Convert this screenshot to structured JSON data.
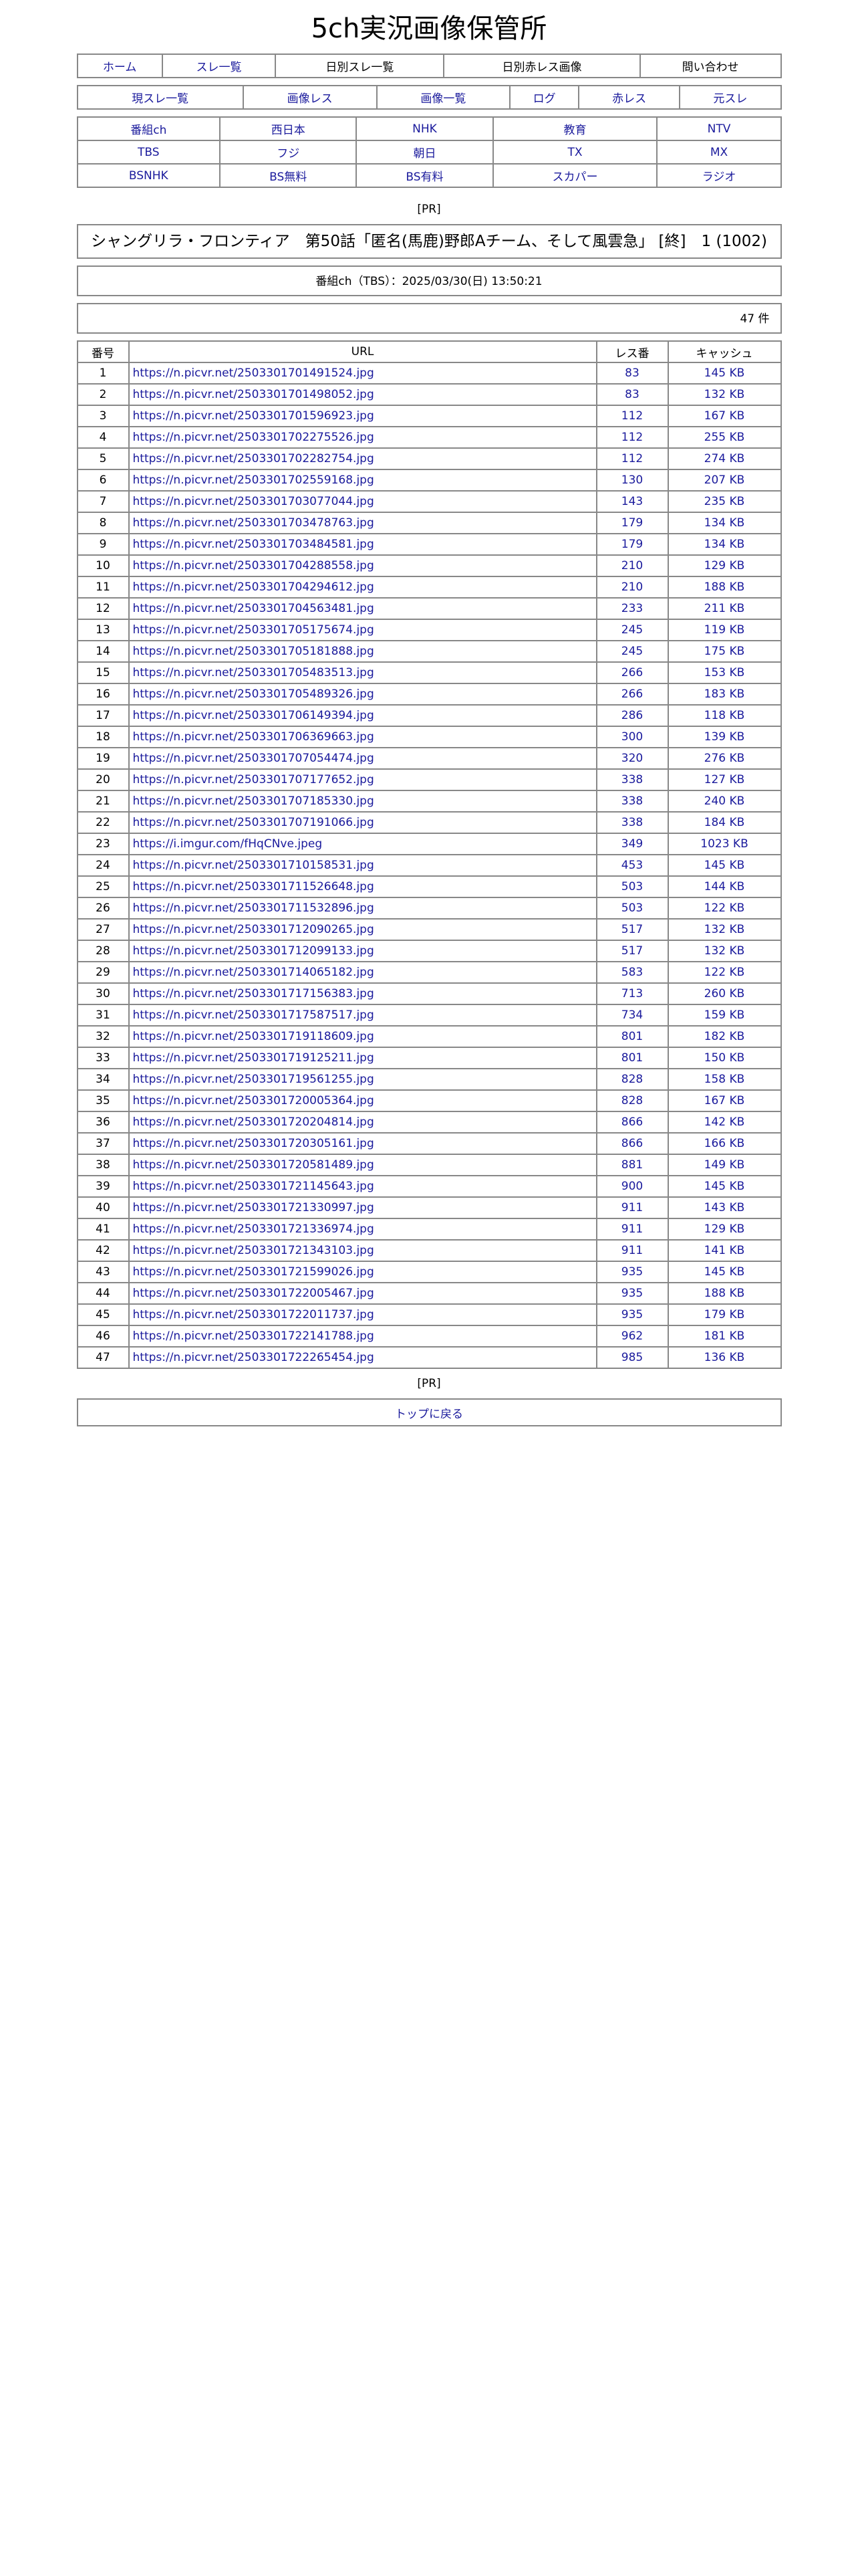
{
  "site_title": "5ch実況画像保管所",
  "nav1": [
    {
      "label": "ホーム",
      "link": true
    },
    {
      "label": "スレ一覧",
      "link": true
    },
    {
      "label": "日別スレ一覧",
      "link": false
    },
    {
      "label": "日別赤レス画像",
      "link": false
    },
    {
      "label": "問い合わせ",
      "link": false
    }
  ],
  "nav2": [
    "現スレ一覧",
    "画像レス",
    "画像一覧",
    "ログ",
    "赤レス",
    "元スレ"
  ],
  "channels": [
    [
      "番組ch",
      "西日本",
      "NHK",
      "教育",
      "NTV"
    ],
    [
      "TBS",
      "フジ",
      "朝日",
      "TX",
      "MX"
    ],
    [
      "BSNHK",
      "BS無料",
      "BS有料",
      "スカパー",
      "ラジオ"
    ]
  ],
  "pr_label": "[PR]",
  "thread_title": "シャングリラ・フロンティア　第50話「匿名(馬鹿)野郎Aチーム、そして風雲急」 [終]　1 (1002)",
  "thread_info": "番組ch（TBS）：2025/03/30(日) 13:50:21",
  "count": "47 件",
  "table": {
    "headers": [
      "番号",
      "URL",
      "レス番",
      "キャッシュ"
    ],
    "rows": [
      [
        "1",
        "https://n.picvr.net/2503301701491524.jpg",
        "83",
        "145 KB"
      ],
      [
        "2",
        "https://n.picvr.net/2503301701498052.jpg",
        "83",
        "132 KB"
      ],
      [
        "3",
        "https://n.picvr.net/2503301701596923.jpg",
        "112",
        "167 KB"
      ],
      [
        "4",
        "https://n.picvr.net/2503301702275526.jpg",
        "112",
        "255 KB"
      ],
      [
        "5",
        "https://n.picvr.net/2503301702282754.jpg",
        "112",
        "274 KB"
      ],
      [
        "6",
        "https://n.picvr.net/2503301702559168.jpg",
        "130",
        "207 KB"
      ],
      [
        "7",
        "https://n.picvr.net/2503301703077044.jpg",
        "143",
        "235 KB"
      ],
      [
        "8",
        "https://n.picvr.net/2503301703478763.jpg",
        "179",
        "134 KB"
      ],
      [
        "9",
        "https://n.picvr.net/2503301703484581.jpg",
        "179",
        "134 KB"
      ],
      [
        "10",
        "https://n.picvr.net/2503301704288558.jpg",
        "210",
        "129 KB"
      ],
      [
        "11",
        "https://n.picvr.net/2503301704294612.jpg",
        "210",
        "188 KB"
      ],
      [
        "12",
        "https://n.picvr.net/2503301704563481.jpg",
        "233",
        "211 KB"
      ],
      [
        "13",
        "https://n.picvr.net/2503301705175674.jpg",
        "245",
        "119 KB"
      ],
      [
        "14",
        "https://n.picvr.net/2503301705181888.jpg",
        "245",
        "175 KB"
      ],
      [
        "15",
        "https://n.picvr.net/2503301705483513.jpg",
        "266",
        "153 KB"
      ],
      [
        "16",
        "https://n.picvr.net/2503301705489326.jpg",
        "266",
        "183 KB"
      ],
      [
        "17",
        "https://n.picvr.net/2503301706149394.jpg",
        "286",
        "118 KB"
      ],
      [
        "18",
        "https://n.picvr.net/2503301706369663.jpg",
        "300",
        "139 KB"
      ],
      [
        "19",
        "https://n.picvr.net/2503301707054474.jpg",
        "320",
        "276 KB"
      ],
      [
        "20",
        "https://n.picvr.net/2503301707177652.jpg",
        "338",
        "127 KB"
      ],
      [
        "21",
        "https://n.picvr.net/2503301707185330.jpg",
        "338",
        "240 KB"
      ],
      [
        "22",
        "https://n.picvr.net/2503301707191066.jpg",
        "338",
        "184 KB"
      ],
      [
        "23",
        "https://i.imgur.com/fHqCNve.jpeg",
        "349",
        "1023 KB"
      ],
      [
        "24",
        "https://n.picvr.net/2503301710158531.jpg",
        "453",
        "145 KB"
      ],
      [
        "25",
        "https://n.picvr.net/2503301711526648.jpg",
        "503",
        "144 KB"
      ],
      [
        "26",
        "https://n.picvr.net/2503301711532896.jpg",
        "503",
        "122 KB"
      ],
      [
        "27",
        "https://n.picvr.net/2503301712090265.jpg",
        "517",
        "132 KB"
      ],
      [
        "28",
        "https://n.picvr.net/2503301712099133.jpg",
        "517",
        "132 KB"
      ],
      [
        "29",
        "https://n.picvr.net/2503301714065182.jpg",
        "583",
        "122 KB"
      ],
      [
        "30",
        "https://n.picvr.net/2503301717156383.jpg",
        "713",
        "260 KB"
      ],
      [
        "31",
        "https://n.picvr.net/2503301717587517.jpg",
        "734",
        "159 KB"
      ],
      [
        "32",
        "https://n.picvr.net/2503301719118609.jpg",
        "801",
        "182 KB"
      ],
      [
        "33",
        "https://n.picvr.net/2503301719125211.jpg",
        "801",
        "150 KB"
      ],
      [
        "34",
        "https://n.picvr.net/2503301719561255.jpg",
        "828",
        "158 KB"
      ],
      [
        "35",
        "https://n.picvr.net/2503301720005364.jpg",
        "828",
        "167 KB"
      ],
      [
        "36",
        "https://n.picvr.net/2503301720204814.jpg",
        "866",
        "142 KB"
      ],
      [
        "37",
        "https://n.picvr.net/2503301720305161.jpg",
        "866",
        "166 KB"
      ],
      [
        "38",
        "https://n.picvr.net/2503301720581489.jpg",
        "881",
        "149 KB"
      ],
      [
        "39",
        "https://n.picvr.net/2503301721145643.jpg",
        "900",
        "145 KB"
      ],
      [
        "40",
        "https://n.picvr.net/2503301721330997.jpg",
        "911",
        "143 KB"
      ],
      [
        "41",
        "https://n.picvr.net/2503301721336974.jpg",
        "911",
        "129 KB"
      ],
      [
        "42",
        "https://n.picvr.net/2503301721343103.jpg",
        "911",
        "141 KB"
      ],
      [
        "43",
        "https://n.picvr.net/2503301721599026.jpg",
        "935",
        "145 KB"
      ],
      [
        "44",
        "https://n.picvr.net/2503301722005467.jpg",
        "935",
        "188 KB"
      ],
      [
        "45",
        "https://n.picvr.net/2503301722011737.jpg",
        "935",
        "179 KB"
      ],
      [
        "46",
        "https://n.picvr.net/2503301722141788.jpg",
        "962",
        "181 KB"
      ],
      [
        "47",
        "https://n.picvr.net/2503301722265454.jpg",
        "985",
        "136 KB"
      ]
    ]
  },
  "back_to_top": "トップに戻る",
  "colors": {
    "link": "#1a1a9c",
    "border": "#888888"
  }
}
